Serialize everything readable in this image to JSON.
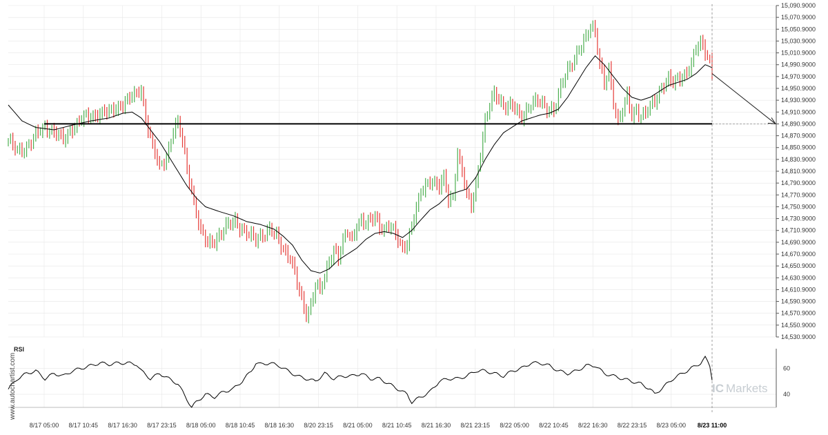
{
  "chart_data": [
    {
      "type": "candlestick",
      "title": "",
      "ylim": [
        14530,
        15090
      ],
      "y_ticks": [
        "15,090.9000",
        "15,070.9000",
        "15,050.9000",
        "15,030.9000",
        "15,010.9000",
        "14,990.9000",
        "14,970.9000",
        "14,950.9000",
        "14,930.9000",
        "14,910.9000",
        "14,890.9000",
        "14,870.9000",
        "14,850.9000",
        "14,830.9000",
        "14,810.9000",
        "14,790.9000",
        "14,770.9000",
        "14,750.9000",
        "14,730.9000",
        "14,710.9000",
        "14,690.9000",
        "14,670.9000",
        "14,650.9000",
        "14,630.9000",
        "14,610.9000",
        "14,590.9000",
        "14,570.9000",
        "14,550.9000",
        "14,530.9000"
      ],
      "x_ticks": [
        "8/17 05:00",
        "8/17 10:45",
        "8/17 16:30",
        "8/17 23:15",
        "8/18 05:00",
        "8/18 10:45",
        "8/18 16:30",
        "8/20 23:15",
        "8/21 05:00",
        "8/21 10:45",
        "8/21 16:30",
        "8/21 23:15",
        "8/22 05:00",
        "8/22 10:45",
        "8/22 16:30",
        "8/22 23:15",
        "8/23 05:00",
        "8/23 11:00"
      ],
      "highlighted_x_tick": "8/23 11:00",
      "support_level": 14890,
      "forecast_target": 14890,
      "price_path": [
        [
          0,
          14862
        ],
        [
          4,
          14842
        ],
        [
          8,
          14852
        ],
        [
          12,
          14870
        ],
        [
          16,
          14885
        ],
        [
          20,
          14878
        ],
        [
          24,
          14860
        ],
        [
          28,
          14885
        ],
        [
          32,
          14898
        ],
        [
          36,
          14902
        ],
        [
          40,
          14910
        ],
        [
          44,
          14908
        ],
        [
          48,
          14920
        ],
        [
          52,
          14930
        ],
        [
          56,
          14940
        ],
        [
          58,
          14950
        ],
        [
          60,
          14900
        ],
        [
          63,
          14850
        ],
        [
          66,
          14815
        ],
        [
          69,
          14835
        ],
        [
          72,
          14880
        ],
        [
          74,
          14890
        ],
        [
          76,
          14860
        ],
        [
          78,
          14815
        ],
        [
          80,
          14780
        ],
        [
          82,
          14740
        ],
        [
          84,
          14705
        ],
        [
          87,
          14688
        ],
        [
          90,
          14695
        ],
        [
          93,
          14705
        ],
        [
          96,
          14718
        ],
        [
          99,
          14728
        ],
        [
          102,
          14712
        ],
        [
          105,
          14700
        ],
        [
          108,
          14695
        ],
        [
          111,
          14705
        ],
        [
          114,
          14710
        ],
        [
          117,
          14698
        ],
        [
          120,
          14680
        ],
        [
          123,
          14665
        ],
        [
          126,
          14620
        ],
        [
          128,
          14590
        ],
        [
          130,
          14570
        ],
        [
          132,
          14585
        ],
        [
          134,
          14620
        ],
        [
          136,
          14605
        ],
        [
          138,
          14630
        ],
        [
          140,
          14660
        ],
        [
          142,
          14680
        ],
        [
          144,
          14665
        ],
        [
          146,
          14690
        ],
        [
          148,
          14705
        ],
        [
          150,
          14695
        ],
        [
          152,
          14722
        ],
        [
          154,
          14728
        ],
        [
          156,
          14718
        ],
        [
          158,
          14725
        ],
        [
          160,
          14735
        ],
        [
          162,
          14720
        ],
        [
          164,
          14712
        ],
        [
          166,
          14716
        ],
        [
          168,
          14708
        ],
        [
          170,
          14695
        ],
        [
          172,
          14682
        ],
        [
          174,
          14690
        ],
        [
          176,
          14715
        ],
        [
          178,
          14745
        ],
        [
          180,
          14775
        ],
        [
          182,
          14790
        ],
        [
          184,
          14795
        ],
        [
          186,
          14788
        ],
        [
          188,
          14780
        ],
        [
          190,
          14800
        ],
        [
          192,
          14765
        ],
        [
          194,
          14770
        ],
        [
          196,
          14840
        ],
        [
          198,
          14805
        ],
        [
          200,
          14770
        ],
        [
          202,
          14755
        ],
        [
          204,
          14790
        ],
        [
          206,
          14840
        ],
        [
          208,
          14890
        ],
        [
          210,
          14920
        ],
        [
          212,
          14945
        ],
        [
          214,
          14935
        ],
        [
          216,
          14920
        ],
        [
          218,
          14915
        ],
        [
          220,
          14920
        ],
        [
          222,
          14912
        ],
        [
          224,
          14905
        ],
        [
          226,
          14912
        ],
        [
          228,
          14920
        ],
        [
          230,
          14925
        ],
        [
          232,
          14930
        ],
        [
          234,
          14922
        ],
        [
          236,
          14915
        ],
        [
          238,
          14910
        ],
        [
          240,
          14935
        ],
        [
          242,
          14965
        ],
        [
          244,
          14985
        ],
        [
          246,
          14995
        ],
        [
          248,
          15005
        ],
        [
          250,
          15020
        ],
        [
          252,
          15035
        ],
        [
          254,
          15060
        ],
        [
          256,
          15048
        ],
        [
          258,
          14990
        ],
        [
          260,
          14955
        ],
        [
          262,
          14980
        ],
        [
          264,
          14930
        ],
        [
          266,
          14895
        ],
        [
          268,
          14915
        ],
        [
          270,
          14935
        ],
        [
          272,
          14900
        ],
        [
          274,
          14915
        ],
        [
          276,
          14905
        ],
        [
          278,
          14910
        ],
        [
          280,
          14918
        ],
        [
          282,
          14925
        ],
        [
          284,
          14945
        ],
        [
          286,
          14960
        ],
        [
          288,
          14968
        ],
        [
          290,
          14958
        ],
        [
          292,
          14962
        ],
        [
          294,
          14970
        ],
        [
          296,
          14980
        ],
        [
          298,
          14995
        ],
        [
          300,
          15015
        ],
        [
          302,
          15025
        ],
        [
          304,
          15012
        ],
        [
          306,
          15000
        ],
        [
          307,
          14975
        ]
      ],
      "ma_path": [
        [
          0,
          14922
        ],
        [
          6,
          14895
        ],
        [
          12,
          14884
        ],
        [
          20,
          14880
        ],
        [
          28,
          14888
        ],
        [
          36,
          14895
        ],
        [
          44,
          14900
        ],
        [
          50,
          14908
        ],
        [
          54,
          14910
        ],
        [
          58,
          14900
        ],
        [
          62,
          14880
        ],
        [
          66,
          14860
        ],
        [
          70,
          14835
        ],
        [
          74,
          14810
        ],
        [
          78,
          14785
        ],
        [
          82,
          14765
        ],
        [
          86,
          14750
        ],
        [
          92,
          14742
        ],
        [
          98,
          14735
        ],
        [
          104,
          14725
        ],
        [
          110,
          14720
        ],
        [
          116,
          14712
        ],
        [
          120,
          14700
        ],
        [
          124,
          14685
        ],
        [
          128,
          14660
        ],
        [
          132,
          14642
        ],
        [
          136,
          14638
        ],
        [
          140,
          14645
        ],
        [
          144,
          14660
        ],
        [
          148,
          14670
        ],
        [
          152,
          14680
        ],
        [
          156,
          14695
        ],
        [
          160,
          14705
        ],
        [
          164,
          14708
        ],
        [
          168,
          14705
        ],
        [
          172,
          14698
        ],
        [
          176,
          14710
        ],
        [
          180,
          14728
        ],
        [
          184,
          14745
        ],
        [
          188,
          14755
        ],
        [
          192,
          14770
        ],
        [
          196,
          14775
        ],
        [
          200,
          14780
        ],
        [
          204,
          14800
        ],
        [
          208,
          14830
        ],
        [
          212,
          14855
        ],
        [
          216,
          14875
        ],
        [
          220,
          14885
        ],
        [
          224,
          14895
        ],
        [
          228,
          14900
        ],
        [
          232,
          14905
        ],
        [
          236,
          14908
        ],
        [
          240,
          14915
        ],
        [
          244,
          14935
        ],
        [
          248,
          14960
        ],
        [
          252,
          14985
        ],
        [
          256,
          15005
        ],
        [
          260,
          14990
        ],
        [
          264,
          14970
        ],
        [
          268,
          14950
        ],
        [
          272,
          14935
        ],
        [
          276,
          14930
        ],
        [
          280,
          14935
        ],
        [
          284,
          14945
        ],
        [
          288,
          14955
        ],
        [
          292,
          14960
        ],
        [
          296,
          14965
        ],
        [
          300,
          14975
        ],
        [
          304,
          14990
        ],
        [
          307,
          14985
        ]
      ]
    },
    {
      "type": "line",
      "title": "RSI",
      "ylim": [
        30,
        75
      ],
      "y_ticks": [
        "60",
        "40"
      ],
      "rsi_path": [
        [
          0,
          44
        ],
        [
          4,
          52
        ],
        [
          8,
          56
        ],
        [
          12,
          58
        ],
        [
          16,
          52
        ],
        [
          20,
          56
        ],
        [
          24,
          54
        ],
        [
          28,
          58
        ],
        [
          32,
          60
        ],
        [
          36,
          62
        ],
        [
          40,
          64
        ],
        [
          44,
          63
        ],
        [
          48,
          64
        ],
        [
          52,
          64
        ],
        [
          56,
          63
        ],
        [
          58,
          58
        ],
        [
          62,
          52
        ],
        [
          66,
          56
        ],
        [
          70,
          52
        ],
        [
          74,
          48
        ],
        [
          76,
          42
        ],
        [
          78,
          36
        ],
        [
          80,
          30
        ],
        [
          82,
          34
        ],
        [
          86,
          40
        ],
        [
          90,
          38
        ],
        [
          94,
          42
        ],
        [
          98,
          44
        ],
        [
          102,
          50
        ],
        [
          106,
          58
        ],
        [
          108,
          64
        ],
        [
          110,
          63
        ],
        [
          114,
          64
        ],
        [
          118,
          62
        ],
        [
          122,
          58
        ],
        [
          126,
          54
        ],
        [
          130,
          52
        ],
        [
          134,
          50
        ],
        [
          138,
          56
        ],
        [
          142,
          52
        ],
        [
          146,
          54
        ],
        [
          150,
          54
        ],
        [
          154,
          56
        ],
        [
          158,
          52
        ],
        [
          162,
          52
        ],
        [
          166,
          48
        ],
        [
          170,
          44
        ],
        [
          174,
          40
        ],
        [
          176,
          34
        ],
        [
          180,
          38
        ],
        [
          184,
          42
        ],
        [
          188,
          50
        ],
        [
          192,
          52
        ],
        [
          196,
          52
        ],
        [
          200,
          54
        ],
        [
          204,
          58
        ],
        [
          208,
          58
        ],
        [
          212,
          56
        ],
        [
          216,
          54
        ],
        [
          220,
          58
        ],
        [
          224,
          60
        ],
        [
          228,
          64
        ],
        [
          232,
          64
        ],
        [
          236,
          62
        ],
        [
          240,
          58
        ],
        [
          244,
          56
        ],
        [
          248,
          58
        ],
        [
          252,
          62
        ],
        [
          256,
          62
        ],
        [
          260,
          56
        ],
        [
          264,
          54
        ],
        [
          268,
          52
        ],
        [
          272,
          50
        ],
        [
          276,
          48
        ],
        [
          280,
          44
        ],
        [
          282,
          40
        ],
        [
          286,
          46
        ],
        [
          290,
          52
        ],
        [
          294,
          56
        ],
        [
          298,
          60
        ],
        [
          302,
          64
        ],
        [
          304,
          68
        ],
        [
          306,
          62
        ],
        [
          307,
          52
        ]
      ]
    }
  ],
  "rsi_label": "RSI",
  "watermark": "www.autochartist.com",
  "brand": {
    "name": "Markets",
    "prefix": "IC"
  },
  "colors": {
    "up_bar": "#4caf50",
    "down_bar": "#e53935",
    "ma_line": "#000000",
    "support_line": "#000000",
    "forecast_line": "#222222",
    "grid": "#e6e6e6",
    "brand_text": "#c7cdd2"
  }
}
